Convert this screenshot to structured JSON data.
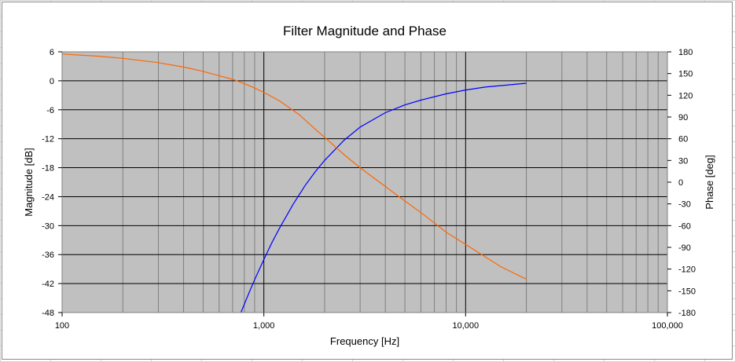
{
  "chart_data": {
    "type": "line",
    "title": "Filter Magnitude and Phase",
    "xlabel": "Frequency [Hz]",
    "ylabel": "Magnitude [dB]",
    "y2label": "Phase [deg]",
    "xscale": "log",
    "xlim": [
      100,
      100000
    ],
    "ylim": [
      -48,
      6
    ],
    "y2lim": [
      -180,
      180
    ],
    "xticks": [
      100,
      1000,
      10000,
      100000
    ],
    "xtick_labels": [
      "100",
      "1,000",
      "10,000",
      "100,000"
    ],
    "yticks": [
      6,
      0,
      -6,
      -12,
      -18,
      -24,
      -30,
      -36,
      -42,
      -48
    ],
    "y2ticks": [
      180,
      150,
      120,
      90,
      60,
      30,
      0,
      -30,
      -60,
      -90,
      -120,
      -150,
      -180
    ],
    "grid": true,
    "plot_background": "#c0c0c0",
    "series": [
      {
        "axis": "left",
        "color": "#0000ff",
        "x": [
          770,
          800,
          850,
          900,
          1000,
          1100,
          1200,
          1400,
          1600,
          1800,
          2000,
          2500,
          3000,
          4000,
          5000,
          6000,
          8000,
          10000,
          12500,
          15000,
          20000
        ],
        "y": [
          -48,
          -46.3,
          -43.6,
          -41.2,
          -37,
          -33.4,
          -30.4,
          -25.5,
          -21.7,
          -18.8,
          -16.5,
          -12.3,
          -9.6,
          -6.6,
          -5,
          -4,
          -2.7,
          -1.9,
          -1.3,
          -1,
          -0.5
        ]
      },
      {
        "axis": "right",
        "color": "#ff6600",
        "x": [
          100,
          150,
          200,
          300,
          400,
          500,
          600,
          700,
          800,
          900,
          1000,
          1200,
          1500,
          1800,
          2000,
          2500,
          3000,
          4000,
          5000,
          6000,
          8000,
          10000,
          15000,
          20000
        ],
        "y": [
          177,
          174,
          171,
          165,
          159,
          153,
          147,
          142,
          136,
          130,
          124,
          112,
          93,
          73,
          62,
          38,
          20,
          -6,
          -26,
          -42,
          -69,
          -86,
          -117,
          -134
        ]
      }
    ]
  }
}
